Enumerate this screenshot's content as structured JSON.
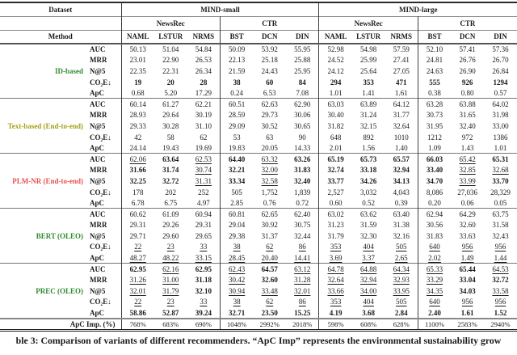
{
  "table": {
    "header": {
      "dataset_label": "Dataset",
      "method_label": "Method",
      "dataset_groups": [
        "MIND-small",
        "MIND-large"
      ],
      "model_groups": [
        "NewsRec",
        "CTR",
        "NewsRec",
        "CTR"
      ],
      "columns": [
        "NAML",
        "LSTUR",
        "NRMS",
        "BST",
        "DCN",
        "DIN",
        "NAML",
        "LSTUR",
        "NRMS",
        "BST",
        "DCN",
        "DIN"
      ]
    },
    "emphasis_legend": {
      "b": "bold",
      "u": "underline"
    },
    "blocks": [
      {
        "name": "ID-based",
        "color": "#2e8b2e",
        "rows": [
          {
            "metric": "AUC",
            "cells": [
              "50.13",
              "51.04",
              "54.84",
              "50.09",
              "53.92",
              "55.95",
              "52.98",
              "54.98",
              "57.59",
              "52.10",
              "57.41",
              "57.36"
            ]
          },
          {
            "metric": "MRR",
            "cells": [
              "23.01",
              "22.90",
              "26.53",
              "22.13",
              "25.18",
              "25.88",
              "24.52",
              "25.99",
              "27.41",
              "24.81",
              "26.76",
              "26.70"
            ]
          },
          {
            "metric": "N@5",
            "cells": [
              "22.35",
              "22.31",
              "26.34",
              "21.59",
              "24.43",
              "25.95",
              "24.12",
              "25.64",
              "27.05",
              "24.63",
              "26.90",
              "26.84"
            ]
          },
          {
            "metric": "CO₂E↓",
            "cells": [
              "b:19",
              "b:20",
              "b:28",
              "b:38",
              "b:60",
              "b:84",
              "b:294",
              "b:353",
              "b:471",
              "b:555",
              "b:926",
              "b:1294"
            ]
          },
          {
            "metric": "ApC",
            "cells": [
              "0.68",
              "5.20",
              "17.29",
              "0.24",
              "6.53",
              "7.08",
              "1.01",
              "1.41",
              "1.61",
              "0.38",
              "0.80",
              "0.57"
            ]
          }
        ]
      },
      {
        "name": "Text-based (End-to-end)",
        "color": "#a3a018",
        "rows": [
          {
            "metric": "AUC",
            "cells": [
              "60.14",
              "61.27",
              "62.21",
              "60.51",
              "62.63",
              "62.90",
              "63.03",
              "63.89",
              "64.12",
              "63.28",
              "63.88",
              "64.02"
            ]
          },
          {
            "metric": "MRR",
            "cells": [
              "28.93",
              "29.64",
              "30.19",
              "28.59",
              "29.73",
              "30.06",
              "30.40",
              "31.24",
              "31.77",
              "30.73",
              "31.65",
              "31.98"
            ]
          },
          {
            "metric": "N@5",
            "cells": [
              "29.33",
              "30.28",
              "31.10",
              "29.09",
              "30.52",
              "30.65",
              "31.82",
              "32.15",
              "32.64",
              "31.95",
              "32.40",
              "33.00"
            ]
          },
          {
            "metric": "CO₂E↓",
            "cells": [
              "42",
              "58",
              "62",
              "53",
              "63",
              "90",
              "648",
              "892",
              "1010",
              "1212",
              "972",
              "1386"
            ]
          },
          {
            "metric": "ApC",
            "cells": [
              "24.14",
              "19.43",
              "19.69",
              "19.83",
              "20.05",
              "14.33",
              "2.01",
              "1.56",
              "1.40",
              "1.09",
              "1.43",
              "1.01"
            ]
          }
        ]
      },
      {
        "name": "PLM-NR (End-to-end)",
        "color": "#e9514e",
        "rows": [
          {
            "metric": "AUC",
            "cells": [
              "u:62.06",
              "b:63.64",
              "u:62.53",
              "b:64.40",
              "u:63.32",
              "b:63.26",
              "b:65.19",
              "b:65.73",
              "b:65.57",
              "b:66.03",
              "u:65.42",
              "b:65.31"
            ]
          },
          {
            "metric": "MRR",
            "cells": [
              "b:31.66",
              "b:31.74",
              "u:30.74",
              "b:32.21",
              "u:32.00",
              "b:31.83",
              "b:32.74",
              "b:33.18",
              "b:32.94",
              "b:33.40",
              "u:32.85",
              "u:32.68"
            ]
          },
          {
            "metric": "N@5",
            "cells": [
              "b:32.25",
              "b:32.72",
              "u:31.31",
              "b:33.34",
              "u:32.58",
              "b:32.40",
              "b:33.77",
              "b:34.26",
              "b:34.13",
              "b:34.70",
              "u:33.99",
              "b:33.70"
            ]
          },
          {
            "metric": "CO₂E↓",
            "cells": [
              "178",
              "202",
              "252",
              "505",
              "1,752",
              "1,839",
              "2,527",
              "3,032",
              "4,043",
              "8,086",
              "27,036",
              "28,329"
            ]
          },
          {
            "metric": "ApC",
            "cells": [
              "6.78",
              "6.75",
              "4.97",
              "2.85",
              "0.76",
              "0.72",
              "0.60",
              "0.52",
              "0.39",
              "0.20",
              "0.06",
              "0.05"
            ]
          }
        ]
      },
      {
        "name": "BERT (OLEO)",
        "color": "#2e8b2e",
        "rows": [
          {
            "metric": "AUC",
            "cells": [
              "60.62",
              "61.09",
              "60.94",
              "60.81",
              "62.65",
              "62.40",
              "63.02",
              "63.62",
              "63.40",
              "62.94",
              "64.29",
              "63.75"
            ]
          },
          {
            "metric": "MRR",
            "cells": [
              "29.31",
              "29.26",
              "29.31",
              "29.04",
              "30.92",
              "30.75",
              "31.23",
              "31.59",
              "31.38",
              "30.56",
              "32.60",
              "31.58"
            ]
          },
          {
            "metric": "N@5",
            "cells": [
              "29.71",
              "29.60",
              "29.65",
              "29.38",
              "31.37",
              "32.44",
              "31.79",
              "32.30",
              "32.16",
              "31.83",
              "33.63",
              "32.43"
            ]
          },
          {
            "metric": "CO₂E↓",
            "cells": [
              "u:22",
              "u:23",
              "u:33",
              "u:38",
              "u:62",
              "u:86",
              "u:353",
              "u:404",
              "u:505",
              "u:640",
              "u:956",
              "u:956"
            ]
          },
          {
            "metric": "ApC",
            "cells": [
              "u:48.27",
              "u:48.22",
              "u:33.15",
              "u:28.45",
              "u:20.40",
              "u:14.41",
              "u:3.69",
              "u:3.37",
              "u:2.65",
              "u:2.02",
              "u:1.49",
              "u:1.44"
            ]
          }
        ]
      },
      {
        "name": "PREC (OLEO)",
        "color": "#2e8b2e",
        "rows": [
          {
            "metric": "AUC",
            "cells": [
              "b:62.95",
              "u:62.16",
              "b:62.95",
              "u:62.43",
              "b:64.57",
              "u:63.12",
              "u:64.78",
              "u:64.88",
              "u:64.34",
              "u:65.33",
              "b:65.44",
              "u:64.53"
            ]
          },
          {
            "metric": "MRR",
            "cells": [
              "u:31.26",
              "u:31.00",
              "b:31.18",
              "u:30.42",
              "b:32.60",
              "u:31.28",
              "u:32.64",
              "u:32.94",
              "u:32.93",
              "u:33.29",
              "b:33.04",
              "b:32.72"
            ]
          },
          {
            "metric": "N@5",
            "cells": [
              "u:32.01",
              "u:31.79",
              "b:32.10",
              "u:30.94",
              "u:33.48",
              "u:32.01",
              "u:33.66",
              "u:34.00",
              "u:33.95",
              "u:34.35",
              "b:34.03",
              "u:33.58"
            ]
          },
          {
            "metric": "CO₂E↓",
            "cells": [
              "u:22",
              "u:23",
              "u:33",
              "u:38",
              "u:62",
              "u:86",
              "u:353",
              "u:404",
              "u:505",
              "u:640",
              "u:956",
              "u:956"
            ]
          },
          {
            "metric": "ApC",
            "cells": [
              "b:58.86",
              "b:52.87",
              "b:39.24",
              "b:32.71",
              "b:23.50",
              "b:15.25",
              "b:4.19",
              "b:3.68",
              "b:2.84",
              "b:2.40",
              "b:1.61",
              "b:1.52"
            ]
          }
        ]
      }
    ],
    "footer": {
      "label": "ApC Imp. (%)",
      "cells": [
        "768%",
        "683%",
        "690%",
        "1048%",
        "2992%",
        "2018%",
        "598%",
        "608%",
        "628%",
        "1100%",
        "2583%",
        "2940%"
      ]
    }
  },
  "caption": "ble 3: Comparison of variants of different recommenders. “ApC Imp” represents the environmental sustainability grow"
}
